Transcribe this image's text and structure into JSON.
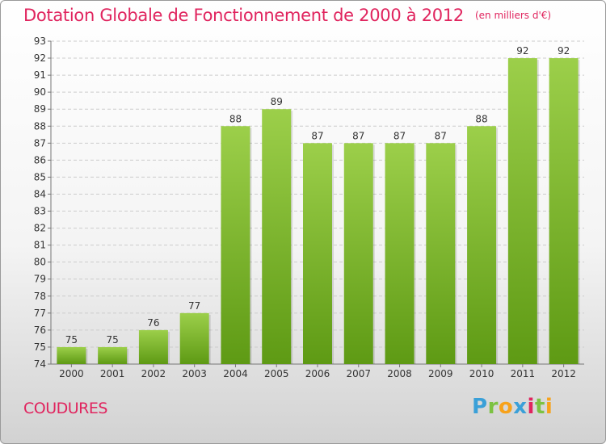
{
  "title": "Dotation Globale de Fonctionnement de 2000 à 2012",
  "unit_note": "(en milliers d'€)",
  "commune": "COUDURES",
  "logo": {
    "p": "P",
    "r": "r",
    "o": "o",
    "x": "x",
    "i1": "i",
    "t": "t",
    "i2": "i"
  },
  "colors": {
    "bar_top": "#9ccf4a",
    "bar_bottom": "#5e9a14",
    "title": "#e0245e",
    "grid": "#cccccc"
  },
  "chart_data": {
    "type": "bar",
    "title": "Dotation Globale de Fonctionnement de 2000 à 2012",
    "xlabel": "",
    "ylabel": "",
    "ylim": [
      74,
      93
    ],
    "grid": true,
    "categories": [
      "2000",
      "2001",
      "2002",
      "2003",
      "2004",
      "2005",
      "2006",
      "2007",
      "2008",
      "2009",
      "2010",
      "2011",
      "2012"
    ],
    "values": [
      75,
      75,
      76,
      77,
      88,
      89,
      87,
      87,
      87,
      87,
      88,
      92,
      92
    ],
    "yticks": [
      74,
      75,
      76,
      77,
      78,
      79,
      80,
      81,
      82,
      83,
      84,
      85,
      86,
      87,
      88,
      89,
      90,
      91,
      92,
      93
    ]
  }
}
